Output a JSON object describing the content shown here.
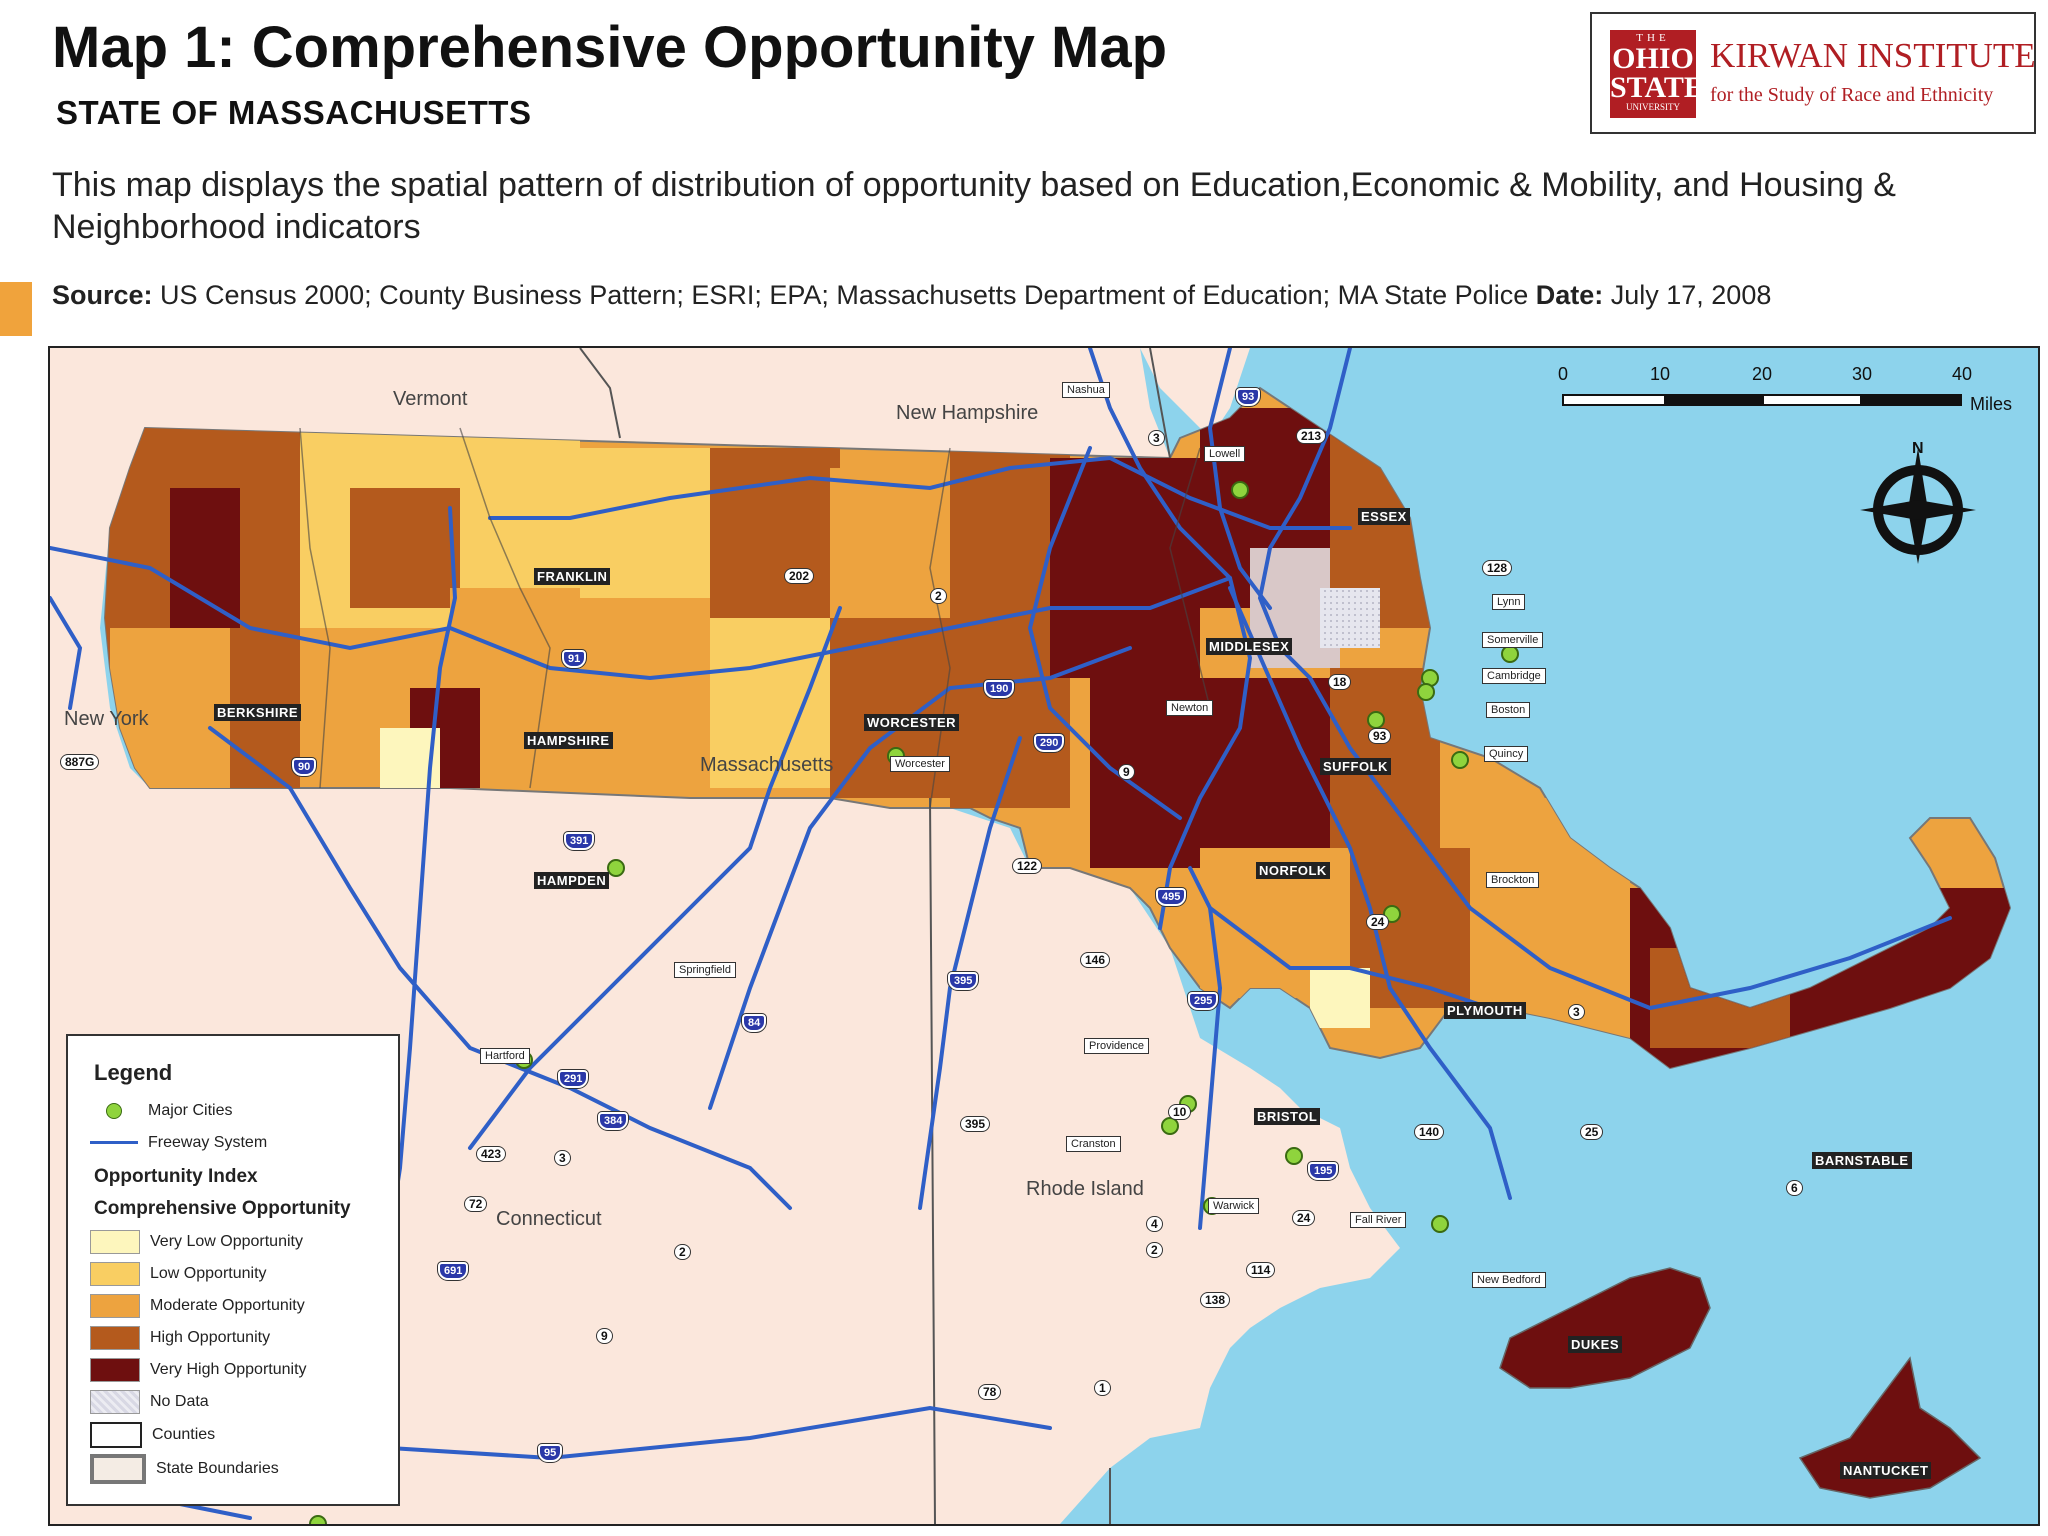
{
  "header": {
    "title": "Map 1: Comprehensive Opportunity Map",
    "subtitle": "STATE OF MASSACHUSETTS",
    "description": "This map displays the spatial pattern of distribution of opportunity based on Education,Economic & Mobility, and Housing & Neighborhood indicators",
    "source_label": "Source:",
    "source_text": " US Census 2000; County Business Pattern; ESRI; EPA; Massachusetts Department of Education; MA State Police ",
    "date_label": "Date:",
    "date_text": " July 17, 2008"
  },
  "logo": {
    "seal_line1": "THE",
    "seal_line2": "OHIO",
    "seal_line3": "STATE",
    "seal_line4": "UNIVERSITY",
    "name": "KIRWAN INSTITUTE",
    "tagline": "for the Study of Race and Ethnicity"
  },
  "map": {
    "states": {
      "vermont": "Vermont",
      "new_hampshire": "New Hampshire",
      "new_york": "New York",
      "massachusetts": "Massachusetts",
      "connecticut": "Connecticut",
      "rhode_island": "Rhode Island"
    },
    "counties": {
      "berkshire": "BERKSHIRE",
      "franklin": "FRANKLIN",
      "hampshire": "HAMPSHIRE",
      "hampden": "HAMPDEN",
      "worcester": "WORCESTER",
      "middlesex": "MIDDLESEX",
      "essex": "ESSEX",
      "suffolk": "SUFFOLK",
      "norfolk": "NORFOLK",
      "plymouth": "PLYMOUTH",
      "bristol": "BRISTOL",
      "barnstable": "BARNSTABLE",
      "dukes": "DUKES",
      "nantucket": "NANTUCKET"
    },
    "cities": {
      "nashua": "Nashua",
      "lowell": "Lowell",
      "lynn": "Lynn",
      "somerville": "Somerville",
      "cambridge": "Cambridge",
      "boston": "Boston",
      "newton": "Newton",
      "quincy": "Quincy",
      "worcester": "Worcester",
      "brockton": "Brockton",
      "springfield": "Springfield",
      "hartford": "Hartford",
      "providence": "Providence",
      "cranston": "Cranston",
      "warwick": "Warwick",
      "fall_river": "Fall River",
      "new_bedford": "New Bedford"
    },
    "roads": {
      "r3": "3",
      "r213": "213",
      "r128": "128",
      "r202": "202",
      "r2": "2",
      "r18": "18",
      "r93": "93",
      "r9": "9",
      "r122": "122",
      "r146": "146",
      "r24": "24",
      "r3b": "3",
      "r10": "10",
      "r140": "140",
      "r25": "25",
      "r6": "6",
      "r24b": "24",
      "r114": "114",
      "r138": "138",
      "r4": "4",
      "r2b": "2",
      "r395": "395",
      "r2c": "2",
      "r9b": "9",
      "r78": "78",
      "r1": "1",
      "r423": "423",
      "r3c": "3",
      "r72": "72",
      "r887g": "887G"
    },
    "interstates": {
      "i93": "93",
      "i91": "91",
      "i190": "190",
      "i290": "290",
      "i90": "90",
      "i391": "391",
      "i495": "495",
      "i395": "395",
      "i84": "84",
      "i295": "295",
      "i291": "291",
      "i384": "384",
      "i195": "195",
      "i691": "691",
      "i95": "95"
    },
    "scale": {
      "ticks": [
        "0",
        "10",
        "20",
        "30",
        "40"
      ],
      "unit": "Miles"
    },
    "north_label": "N"
  },
  "legend": {
    "title": "Legend",
    "major_cities": "Major Cities",
    "freeway": "Freeway System",
    "index_heading": "Opportunity Index",
    "comp_heading": "Comprehensive Opportunity",
    "categories": [
      {
        "label": "Very Low Opportunity",
        "color": "#fdf6bd"
      },
      {
        "label": "Low Opportunity",
        "color": "#f9ce62"
      },
      {
        "label": "Moderate Opportunity",
        "color": "#eda33f"
      },
      {
        "label": "High Opportunity",
        "color": "#b45a1d"
      },
      {
        "label": "Very High Opportunity",
        "color": "#6e0f0f"
      }
    ],
    "no_data": "No Data",
    "counties": "Counties",
    "state_boundaries": "State Boundaries"
  },
  "colors": {
    "water": "#8dd3ec",
    "land_other": "#fbe7dc",
    "freeway": "#2f5fc7",
    "city_dot": "#8fd43d"
  }
}
